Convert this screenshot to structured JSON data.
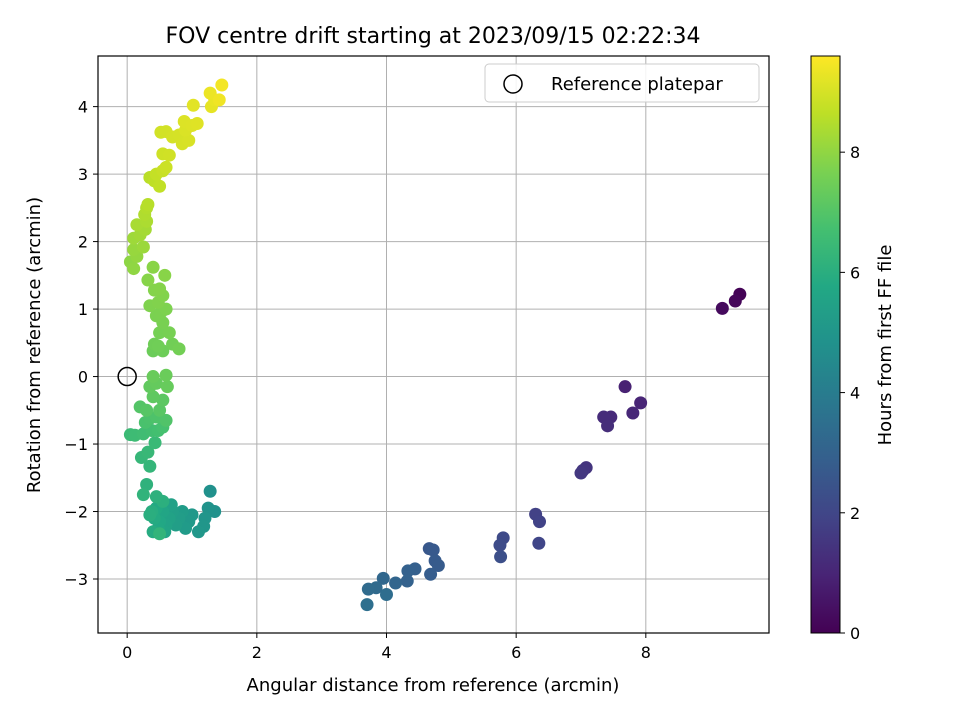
{
  "chart_data": {
    "type": "scatter",
    "title": "FOV centre drift starting at 2023/09/15 02:22:34",
    "xlabel": "Angular distance from reference (arcmin)",
    "ylabel": "Rotation from reference (arcmin)",
    "xlim": [
      -0.45,
      9.9
    ],
    "ylim": [
      -3.8,
      4.75
    ],
    "x_ticks": [
      0,
      2,
      4,
      6,
      8
    ],
    "y_ticks": [
      -3,
      -2,
      -1,
      0,
      1,
      2,
      3,
      4
    ],
    "grid": true,
    "legend": {
      "position": "top-right",
      "entries": [
        "Reference platepar"
      ]
    },
    "colorbar": {
      "label": "Hours from first FF file",
      "range": [
        0,
        9.6
      ],
      "ticks": [
        0,
        2,
        4,
        6,
        8
      ],
      "colormap": "viridis"
    },
    "reference_point": {
      "x": 0,
      "y": 0,
      "label": "Reference platepar"
    },
    "points": [
      {
        "x": 9.45,
        "y": 1.22,
        "h": 0.05
      },
      {
        "x": 9.38,
        "y": 1.12,
        "h": 0.15
      },
      {
        "x": 9.18,
        "y": 1.01,
        "h": 0.25
      },
      {
        "x": 7.68,
        "y": -0.15,
        "h": 0.9
      },
      {
        "x": 7.92,
        "y": -0.39,
        "h": 1.0
      },
      {
        "x": 7.8,
        "y": -0.54,
        "h": 1.05
      },
      {
        "x": 7.46,
        "y": -0.6,
        "h": 1.15
      },
      {
        "x": 7.35,
        "y": -0.6,
        "h": 1.2
      },
      {
        "x": 7.41,
        "y": -0.73,
        "h": 1.25
      },
      {
        "x": 7.08,
        "y": -1.35,
        "h": 1.45
      },
      {
        "x": 7.03,
        "y": -1.39,
        "h": 1.5
      },
      {
        "x": 7.0,
        "y": -1.43,
        "h": 1.55
      },
      {
        "x": 6.3,
        "y": -2.04,
        "h": 1.85
      },
      {
        "x": 6.36,
        "y": -2.15,
        "h": 1.9
      },
      {
        "x": 6.35,
        "y": -2.47,
        "h": 2.0
      },
      {
        "x": 5.8,
        "y": -2.39,
        "h": 2.15
      },
      {
        "x": 5.75,
        "y": -2.5,
        "h": 2.2
      },
      {
        "x": 5.76,
        "y": -2.67,
        "h": 2.3
      },
      {
        "x": 4.66,
        "y": -2.55,
        "h": 2.6
      },
      {
        "x": 4.72,
        "y": -2.57,
        "h": 2.65
      },
      {
        "x": 4.75,
        "y": -2.73,
        "h": 2.7
      },
      {
        "x": 4.8,
        "y": -2.8,
        "h": 2.75
      },
      {
        "x": 4.68,
        "y": -2.93,
        "h": 2.8
      },
      {
        "x": 4.44,
        "y": -2.85,
        "h": 2.9
      },
      {
        "x": 4.33,
        "y": -2.88,
        "h": 2.95
      },
      {
        "x": 4.32,
        "y": -3.03,
        "h": 3.0
      },
      {
        "x": 4.14,
        "y": -3.06,
        "h": 3.1
      },
      {
        "x": 3.95,
        "y": -2.99,
        "h": 3.2
      },
      {
        "x": 3.84,
        "y": -3.13,
        "h": 3.3
      },
      {
        "x": 3.72,
        "y": -3.15,
        "h": 3.35
      },
      {
        "x": 4.0,
        "y": -3.23,
        "h": 3.4
      },
      {
        "x": 3.7,
        "y": -3.38,
        "h": 3.5
      },
      {
        "x": 1.28,
        "y": -1.7,
        "h": 4.8
      },
      {
        "x": 1.35,
        "y": -2.0,
        "h": 4.85
      },
      {
        "x": 1.25,
        "y": -1.95,
        "h": 4.9
      },
      {
        "x": 1.2,
        "y": -2.1,
        "h": 4.95
      },
      {
        "x": 1.18,
        "y": -2.22,
        "h": 5.0
      },
      {
        "x": 1.1,
        "y": -2.3,
        "h": 5.05
      },
      {
        "x": 1.0,
        "y": -2.05,
        "h": 5.1
      },
      {
        "x": 0.95,
        "y": -2.15,
        "h": 5.15
      },
      {
        "x": 0.9,
        "y": -2.25,
        "h": 5.2
      },
      {
        "x": 0.85,
        "y": -2.0,
        "h": 5.25
      },
      {
        "x": 0.8,
        "y": -2.1,
        "h": 5.3
      },
      {
        "x": 0.75,
        "y": -2.2,
        "h": 5.35
      },
      {
        "x": 0.7,
        "y": -2.0,
        "h": 5.4
      },
      {
        "x": 0.68,
        "y": -1.9,
        "h": 5.45
      },
      {
        "x": 0.65,
        "y": -2.1,
        "h": 5.5
      },
      {
        "x": 0.6,
        "y": -2.2,
        "h": 5.55
      },
      {
        "x": 0.58,
        "y": -2.3,
        "h": 5.6
      },
      {
        "x": 0.55,
        "y": -2.0,
        "h": 5.65
      },
      {
        "x": 0.5,
        "y": -2.15,
        "h": 5.7
      },
      {
        "x": 0.48,
        "y": -2.25,
        "h": 5.75
      },
      {
        "x": 0.45,
        "y": -1.95,
        "h": 5.8
      },
      {
        "x": 0.42,
        "y": -2.1,
        "h": 5.85
      },
      {
        "x": 0.4,
        "y": -2.3,
        "h": 5.9
      },
      {
        "x": 0.38,
        "y": -2.0,
        "h": 5.95
      },
      {
        "x": 0.35,
        "y": -2.05,
        "h": 6.0
      },
      {
        "x": 0.55,
        "y": -1.85,
        "h": 6.05
      },
      {
        "x": 0.45,
        "y": -1.78,
        "h": 6.1
      },
      {
        "x": 0.3,
        "y": -1.6,
        "h": 6.15
      },
      {
        "x": 0.25,
        "y": -1.75,
        "h": 6.2
      },
      {
        "x": 0.5,
        "y": -2.33,
        "h": 6.25
      },
      {
        "x": 0.35,
        "y": -1.33,
        "h": 6.3
      },
      {
        "x": 0.22,
        "y": -1.2,
        "h": 6.35
      },
      {
        "x": 0.32,
        "y": -1.12,
        "h": 6.4
      },
      {
        "x": 0.43,
        "y": -0.98,
        "h": 6.45
      },
      {
        "x": 0.05,
        "y": -0.86,
        "h": 6.5
      },
      {
        "x": 0.12,
        "y": -0.87,
        "h": 6.55
      },
      {
        "x": 0.25,
        "y": -0.85,
        "h": 6.6
      },
      {
        "x": 0.38,
        "y": -0.8,
        "h": 6.65
      },
      {
        "x": 0.48,
        "y": -0.8,
        "h": 6.7
      },
      {
        "x": 0.55,
        "y": -0.75,
        "h": 6.75
      },
      {
        "x": 0.28,
        "y": -0.68,
        "h": 6.8
      },
      {
        "x": 0.35,
        "y": -0.62,
        "h": 6.85
      },
      {
        "x": 0.45,
        "y": -0.6,
        "h": 6.9
      },
      {
        "x": 0.6,
        "y": -0.65,
        "h": 6.95
      },
      {
        "x": 0.2,
        "y": -0.45,
        "h": 7.0
      },
      {
        "x": 0.3,
        "y": -0.5,
        "h": 7.05
      },
      {
        "x": 0.5,
        "y": -0.5,
        "h": 7.1
      },
      {
        "x": 0.55,
        "y": -0.35,
        "h": 7.15
      },
      {
        "x": 0.4,
        "y": -0.3,
        "h": 7.2
      },
      {
        "x": 0.35,
        "y": -0.15,
        "h": 7.25
      },
      {
        "x": 0.45,
        "y": -0.1,
        "h": 7.3
      },
      {
        "x": 0.62,
        "y": -0.15,
        "h": 7.35
      },
      {
        "x": 0.4,
        "y": 0.0,
        "h": 7.38
      },
      {
        "x": 0.6,
        "y": 0.02,
        "h": 7.4
      },
      {
        "x": 0.4,
        "y": 0.38,
        "h": 7.42
      },
      {
        "x": 0.55,
        "y": 0.38,
        "h": 7.45
      },
      {
        "x": 0.42,
        "y": 0.48,
        "h": 7.48
      },
      {
        "x": 0.48,
        "y": 0.45,
        "h": 7.5
      },
      {
        "x": 0.7,
        "y": 0.48,
        "h": 7.52
      },
      {
        "x": 0.8,
        "y": 0.41,
        "h": 7.55
      },
      {
        "x": 0.5,
        "y": 0.65,
        "h": 7.6
      },
      {
        "x": 0.65,
        "y": 0.65,
        "h": 7.62
      },
      {
        "x": 0.55,
        "y": 0.8,
        "h": 7.65
      },
      {
        "x": 0.45,
        "y": 0.9,
        "h": 7.68
      },
      {
        "x": 0.52,
        "y": 0.95,
        "h": 7.7
      },
      {
        "x": 0.6,
        "y": 1.0,
        "h": 7.72
      },
      {
        "x": 0.35,
        "y": 1.05,
        "h": 7.75
      },
      {
        "x": 0.48,
        "y": 1.1,
        "h": 7.78
      },
      {
        "x": 0.55,
        "y": 1.2,
        "h": 7.8
      },
      {
        "x": 0.42,
        "y": 1.28,
        "h": 7.82
      },
      {
        "x": 0.5,
        "y": 1.3,
        "h": 7.84
      },
      {
        "x": 0.32,
        "y": 1.43,
        "h": 7.86
      },
      {
        "x": 0.58,
        "y": 1.5,
        "h": 7.88
      },
      {
        "x": 0.4,
        "y": 1.62,
        "h": 7.9
      },
      {
        "x": 0.05,
        "y": 1.7,
        "h": 7.95
      },
      {
        "x": 0.1,
        "y": 1.6,
        "h": 8.0
      },
      {
        "x": 0.15,
        "y": 1.78,
        "h": 8.05
      },
      {
        "x": 0.1,
        "y": 1.88,
        "h": 8.1
      },
      {
        "x": 0.25,
        "y": 1.92,
        "h": 8.15
      },
      {
        "x": 0.1,
        "y": 2.05,
        "h": 8.2
      },
      {
        "x": 0.2,
        "y": 2.1,
        "h": 8.25
      },
      {
        "x": 0.28,
        "y": 2.18,
        "h": 8.3
      },
      {
        "x": 0.15,
        "y": 2.25,
        "h": 8.35
      },
      {
        "x": 0.3,
        "y": 2.3,
        "h": 8.4
      },
      {
        "x": 0.27,
        "y": 2.4,
        "h": 8.45
      },
      {
        "x": 0.3,
        "y": 2.5,
        "h": 8.5
      },
      {
        "x": 0.32,
        "y": 2.55,
        "h": 8.55
      },
      {
        "x": 0.35,
        "y": 2.95,
        "h": 8.6
      },
      {
        "x": 0.42,
        "y": 2.9,
        "h": 8.65
      },
      {
        "x": 0.5,
        "y": 2.82,
        "h": 8.7
      },
      {
        "x": 0.45,
        "y": 3.0,
        "h": 8.75
      },
      {
        "x": 0.55,
        "y": 3.05,
        "h": 8.8
      },
      {
        "x": 0.6,
        "y": 3.1,
        "h": 8.85
      },
      {
        "x": 0.55,
        "y": 3.3,
        "h": 8.9
      },
      {
        "x": 0.65,
        "y": 3.28,
        "h": 8.92
      },
      {
        "x": 0.52,
        "y": 3.62,
        "h": 8.94
      },
      {
        "x": 0.6,
        "y": 3.63,
        "h": 8.96
      },
      {
        "x": 0.7,
        "y": 3.55,
        "h": 8.98
      },
      {
        "x": 0.8,
        "y": 3.58,
        "h": 9.0
      },
      {
        "x": 0.85,
        "y": 3.45,
        "h": 9.02
      },
      {
        "x": 0.95,
        "y": 3.5,
        "h": 9.05
      },
      {
        "x": 0.9,
        "y": 3.65,
        "h": 9.08
      },
      {
        "x": 0.88,
        "y": 3.78,
        "h": 9.1
      },
      {
        "x": 1.0,
        "y": 3.72,
        "h": 9.12
      },
      {
        "x": 1.08,
        "y": 3.75,
        "h": 9.15
      },
      {
        "x": 1.02,
        "y": 4.02,
        "h": 9.2
      },
      {
        "x": 1.3,
        "y": 4.0,
        "h": 9.25
      },
      {
        "x": 1.35,
        "y": 4.1,
        "h": 9.3
      },
      {
        "x": 1.28,
        "y": 4.2,
        "h": 9.35
      },
      {
        "x": 1.42,
        "y": 4.1,
        "h": 9.4
      },
      {
        "x": 1.46,
        "y": 4.32,
        "h": 9.45
      }
    ]
  }
}
